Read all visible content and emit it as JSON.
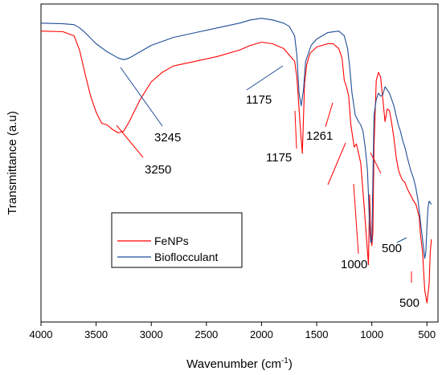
{
  "chart_data": {
    "type": "line",
    "xlabel": "Wavenumber (cm",
    "xlabel_sup": "-1",
    "xlabel_end": ")",
    "ylabel": "Transmittance (a.u)",
    "xlim": [
      4000,
      400
    ],
    "ylim": [
      0,
      100
    ],
    "x_reversed": true,
    "y_ticks_shown": false,
    "xticks": [
      4000,
      3500,
      3000,
      2500,
      2000,
      1500,
      1000,
      500
    ],
    "legend": {
      "placement": "lower-left"
    },
    "series": [
      {
        "name": "FeNPs",
        "color": "#ff0000",
        "x": [
          4000,
          3800,
          3700,
          3650,
          3600,
          3550,
          3500,
          3450,
          3400,
          3350,
          3300,
          3250,
          3200,
          3100,
          3000,
          2900,
          2800,
          2600,
          2400,
          2200,
          2100,
          2000,
          1900,
          1800,
          1750,
          1700,
          1680,
          1650,
          1630,
          1610,
          1590,
          1560,
          1500,
          1400,
          1350,
          1300,
          1270,
          1250,
          1230,
          1210,
          1190,
          1160,
          1140,
          1120,
          1100,
          1080,
          1060,
          1040,
          1030,
          1020,
          1010,
          1000,
          990,
          980,
          960,
          940,
          920,
          900,
          880,
          860,
          840,
          820,
          800,
          780,
          760,
          740,
          720,
          700,
          680,
          650,
          620,
          600,
          570,
          560,
          540,
          520,
          500,
          480,
          470,
          460
        ],
        "y": [
          91.5,
          91.3,
          90.0,
          85.5,
          78.0,
          71.0,
          66.0,
          62.5,
          62.0,
          60.5,
          59.5,
          60.0,
          63.0,
          70.0,
          75.5,
          78.5,
          80.5,
          82.0,
          83.5,
          85.5,
          87.0,
          88.0,
          87.5,
          86.0,
          84.0,
          82.0,
          77.0,
          62.0,
          53.0,
          75.0,
          81.0,
          84.5,
          86.5,
          87.5,
          87.5,
          86.0,
          83.0,
          76.0,
          74.0,
          71.0,
          62.0,
          55.0,
          56.0,
          53.0,
          50.0,
          41.0,
          32.0,
          22.5,
          18.0,
          40.0,
          28.0,
          24.0,
          28.0,
          55.0,
          76.0,
          78.5,
          77.0,
          70.0,
          63.0,
          67.0,
          66.5,
          62.5,
          58.0,
          52.0,
          48.0,
          46.0,
          44.5,
          44.0,
          42.0,
          40.0,
          38.0,
          37.0,
          33.0,
          28.0,
          22.0,
          10.0,
          6.0,
          12.0,
          22.0,
          26.0
        ]
      },
      {
        "name": "Bioflocculant",
        "color": "#1f4e96",
        "x": [
          4000,
          3800,
          3700,
          3650,
          3600,
          3500,
          3400,
          3300,
          3250,
          3200,
          3100,
          3000,
          2800,
          2600,
          2400,
          2200,
          2100,
          2000,
          1900,
          1800,
          1750,
          1700,
          1680,
          1660,
          1640,
          1620,
          1600,
          1550,
          1500,
          1400,
          1300,
          1250,
          1220,
          1200,
          1180,
          1150,
          1120,
          1100,
          1080,
          1060,
          1040,
          1030,
          1020,
          1010,
          1000,
          990,
          980,
          960,
          940,
          920,
          900,
          880,
          860,
          840,
          820,
          800,
          780,
          760,
          740,
          720,
          700,
          680,
          650,
          620,
          600,
          580,
          560,
          540,
          520,
          510,
          500,
          490,
          480,
          470,
          460
        ],
        "y": [
          94.0,
          93.8,
          93.5,
          92.5,
          91.0,
          87.5,
          85.0,
          83.0,
          82.5,
          83.0,
          85.0,
          87.0,
          89.5,
          91.0,
          92.5,
          94.0,
          95.0,
          95.5,
          95.0,
          94.0,
          93.0,
          90.0,
          84.0,
          72.0,
          68.0,
          73.0,
          82.0,
          87.0,
          89.0,
          91.0,
          91.5,
          90.0,
          86.0,
          80.0,
          72.0,
          65.0,
          63.0,
          62.0,
          60.0,
          55.0,
          48.0,
          40.0,
          30.0,
          25.0,
          25.5,
          45.0,
          65.0,
          70.0,
          72.0,
          71.0,
          71.5,
          74.0,
          73.0,
          72.0,
          70.0,
          68.0,
          65.0,
          62.0,
          60.0,
          57.0,
          55.0,
          52.0,
          48.0,
          45.0,
          42.0,
          38.0,
          32.0,
          26.0,
          20.0,
          22.0,
          30.0,
          36.0,
          38.0,
          37.5,
          37.0
        ]
      }
    ],
    "annotations": [
      {
        "text": "3245"
      },
      {
        "text": "3250"
      },
      {
        "text": "1175"
      },
      {
        "text": "1175"
      },
      {
        "text": "1261"
      },
      {
        "text": "1000"
      },
      {
        "text": "500"
      },
      {
        "text": "500"
      }
    ]
  }
}
